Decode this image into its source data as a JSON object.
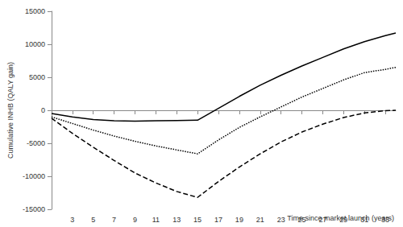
{
  "chart_data": {
    "type": "line",
    "x_label": "Time since market launch (years)",
    "y_label": "Cumulative INHB (QALY gain)",
    "x": [
      1,
      3,
      5,
      7,
      9,
      11,
      13,
      15,
      17,
      19,
      21,
      23,
      25,
      27,
      29,
      31,
      33,
      34
    ],
    "series": [
      {
        "color": "#000000",
        "line_style": "solid",
        "values": [
          -500,
          -1000,
          -1400,
          -1600,
          -1650,
          -1600,
          -1550,
          -1500,
          300,
          2100,
          3800,
          5300,
          6700,
          8000,
          9300,
          10400,
          11300,
          11700
        ]
      },
      {
        "color": "#000000",
        "line_style": "dotted",
        "values": [
          -1000,
          -2000,
          -3000,
          -3900,
          -4700,
          -5400,
          -6000,
          -6600,
          -4500,
          -2600,
          -1000,
          500,
          2000,
          3300,
          4600,
          5700,
          6200,
          6500
        ]
      },
      {
        "color": "#000000",
        "line_style": "dashed",
        "values": [
          -1200,
          -3500,
          -5600,
          -7600,
          -9500,
          -11000,
          -12300,
          -13200,
          -10800,
          -8600,
          -6600,
          -4800,
          -3300,
          -2100,
          -1100,
          -400,
          -50,
          0
        ]
      }
    ],
    "xlim": [
      1,
      34
    ],
    "xticks": [
      3,
      5,
      7,
      9,
      11,
      13,
      15,
      17,
      19,
      21,
      23,
      25,
      27,
      29,
      31,
      33
    ],
    "ylim": [
      -15000,
      15000
    ],
    "yticks": [
      -15000,
      -10000,
      -5000,
      0,
      5000,
      10000,
      15000
    ],
    "grid": false
  }
}
